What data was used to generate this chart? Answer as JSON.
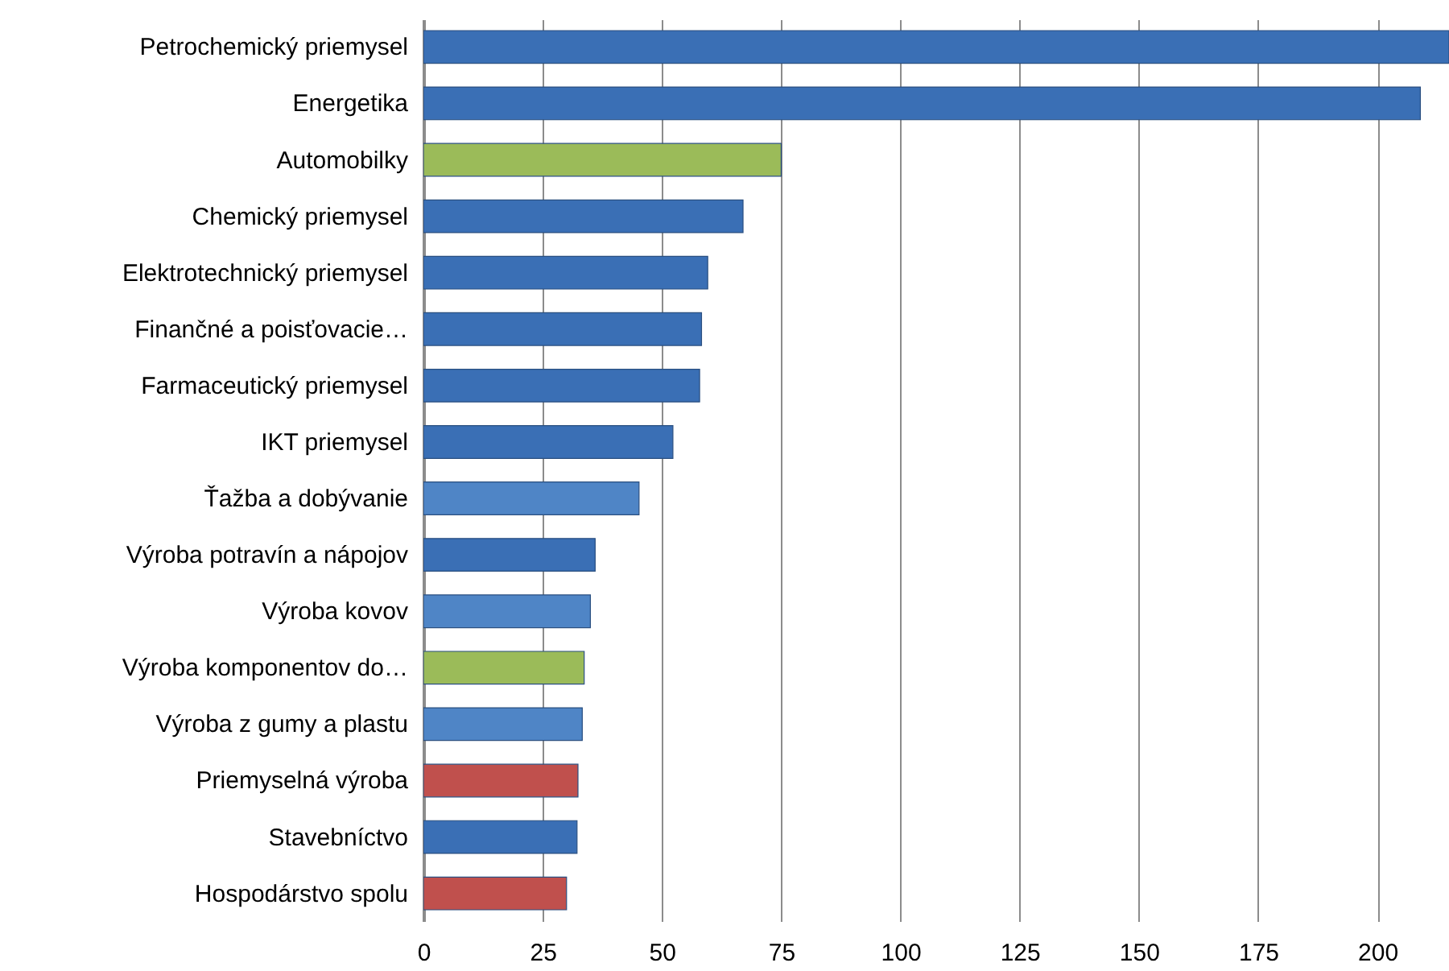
{
  "chart_data": {
    "type": "bar",
    "orientation": "horizontal",
    "categories": [
      "Petrochemický priemysel",
      "Energetika",
      "Automobilky",
      "Chemický priemysel",
      "Elektrotechnický priemysel",
      "Finančné a poisťovacie…",
      "Farmaceutický priemysel",
      "IKT priemysel",
      "Ťažba a dobývanie",
      "Výroba potravín a nápojov",
      "Výroba kovov",
      "Výroba komponentov do…",
      "Výroba z gumy a plastu",
      "Priemyselná výroba",
      "Stavebníctvo",
      "Hospodárstvo spolu"
    ],
    "values": [
      215,
      209,
      75,
      67,
      59.6,
      58.3,
      57.9,
      52.3,
      45.2,
      36,
      35,
      33.7,
      33.3,
      32.4,
      32.2,
      30
    ],
    "colors": [
      "#3a6fb5",
      "#3a6fb5",
      "#9bbb59",
      "#3a6fb5",
      "#3a6fb5",
      "#3a6fb5",
      "#3a6fb5",
      "#3a6fb5",
      "#4f85c6",
      "#3a6fb5",
      "#4f85c6",
      "#9bbb59",
      "#4f85c6",
      "#c0504d",
      "#3a6fb5",
      "#c0504d"
    ],
    "xlim": [
      0,
      215
    ],
    "xticks": [
      0,
      25,
      50,
      75,
      100,
      125,
      150,
      175,
      200
    ],
    "grid": "x"
  }
}
